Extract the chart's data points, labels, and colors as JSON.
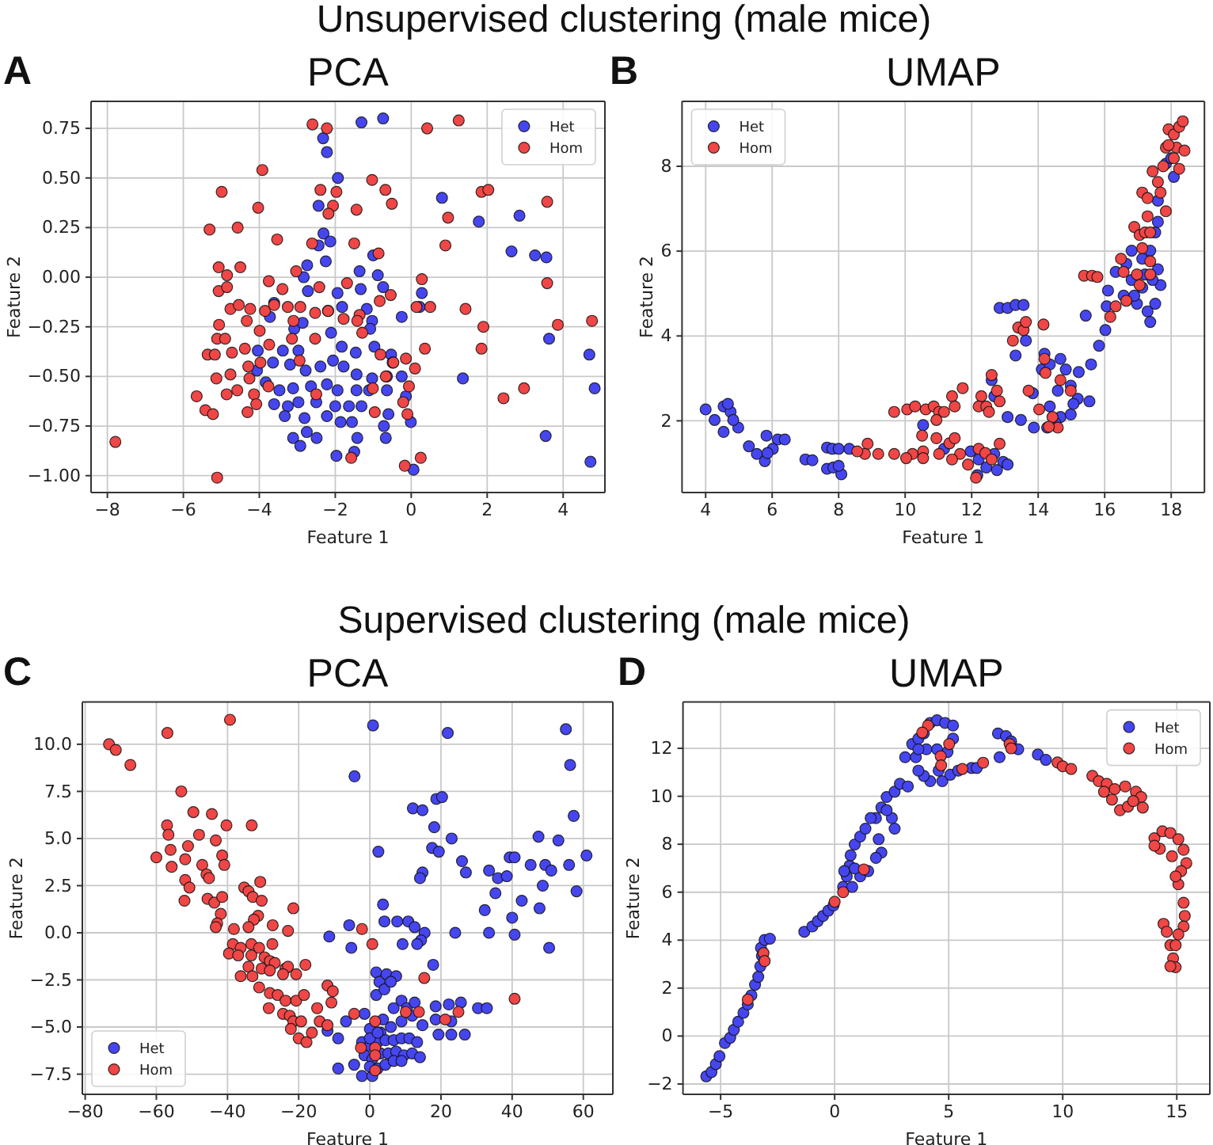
{
  "chart_data": [
    {
      "type": "scatter",
      "title": "PCA",
      "xlabel": "Feature 1",
      "ylabel": "Feature 2",
      "annotations": [
        "A",
        "Unsupervised clustering (male mice)"
      ],
      "xlim": [
        -8.43,
        5.1
      ],
      "ylim": [
        -1.085,
        0.886
      ],
      "xticks": [
        {
          "value": -8,
          "label": "−8"
        },
        {
          "value": -6,
          "label": "−6"
        },
        {
          "value": -4,
          "label": "−4"
        },
        {
          "value": -2,
          "label": "−2"
        },
        0,
        2,
        4
      ],
      "yticks": [
        {
          "value": -1,
          "label": "−1.00"
        },
        {
          "value": -0.75,
          "label": "−0.75"
        },
        {
          "value": -0.5,
          "label": "−0.50"
        },
        {
          "value": -0.25,
          "label": "−0.25"
        },
        {
          "value": 0,
          "label": "0.00"
        },
        {
          "value": 0.25,
          "label": "0.25"
        },
        {
          "value": 0.5,
          "label": "0.50"
        },
        {
          "value": 0.75,
          "label": "0.75"
        }
      ],
      "grid": true,
      "legend": "top right",
      "marker": "circle",
      "series": [
        {
          "name": "Het",
          "color": "#4646f0",
          "x": [
            -1.31,
            -0.74,
            -2.32,
            -2.22,
            -1.93,
            -2.44,
            -2.31,
            -2.13,
            -2.44,
            -2.25,
            -2.74,
            0.81,
            1.78,
            2.85,
            2.64,
            3.26,
            3.56,
            -1.36,
            -1.0,
            -0.88,
            -2.83,
            -2.72,
            -1.94,
            -1.33,
            -0.74,
            0.28,
            0.22,
            -0.25,
            -2.19,
            -1.82,
            -1.17,
            -1.03,
            -3.72,
            -3.61,
            -3.08,
            -2.86,
            -2.11,
            -1.08,
            3.63,
            -4.04,
            -3.38,
            -2.97,
            -1.83,
            -1.46,
            -0.97,
            -0.53,
            -0.49,
            -4.06,
            -3.64,
            -3.19,
            -2.78,
            -2.39,
            -2.06,
            -1.78,
            -1.44,
            -1.03,
            -0.64,
            -0.25,
            1.36,
            4.69,
            4.83,
            -3.83,
            -3.47,
            -3.11,
            -2.64,
            -2.22,
            -1.94,
            -1.44,
            -1.11,
            -0.64,
            -3.61,
            -3.25,
            -2.97,
            -2.5,
            -2.0,
            -1.64,
            -1.31,
            -0.14,
            -0.6,
            -3.33,
            -2.81,
            -2.22,
            -1.86,
            -1.56,
            -0.72,
            -0.01,
            -3.11,
            -2.75,
            -2.49,
            -2.92,
            -1.42,
            -0.67,
            3.54,
            -1.97,
            -1.5,
            0.06,
            4.72
          ],
          "values": [
            0.78,
            0.8,
            0.7,
            0.63,
            0.5,
            0.36,
            0.22,
            0.18,
            0.16,
            0.08,
            0.06,
            0.4,
            0.28,
            0.31,
            0.13,
            0.11,
            0.1,
            0.03,
            0.11,
            0.01,
            0.0,
            -0.07,
            -0.08,
            -0.06,
            -0.05,
            -0.08,
            -0.15,
            -0.2,
            -0.17,
            -0.15,
            -0.16,
            -0.22,
            -0.2,
            -0.13,
            -0.26,
            -0.23,
            -0.28,
            -0.26,
            -0.31,
            -0.37,
            -0.37,
            -0.37,
            -0.35,
            -0.38,
            -0.35,
            -0.39,
            -0.43,
            -0.47,
            -0.43,
            -0.44,
            -0.47,
            -0.45,
            -0.42,
            -0.45,
            -0.49,
            -0.51,
            -0.5,
            -0.5,
            -0.51,
            -0.39,
            -0.56,
            -0.53,
            -0.57,
            -0.56,
            -0.55,
            -0.54,
            -0.57,
            -0.57,
            -0.57,
            -0.57,
            -0.64,
            -0.65,
            -0.63,
            -0.63,
            -0.65,
            -0.65,
            -0.65,
            -0.6,
            -0.69,
            -0.7,
            -0.71,
            -0.7,
            -0.73,
            -0.73,
            -0.75,
            -0.73,
            -0.81,
            -0.78,
            -0.81,
            -0.85,
            -0.81,
            -0.81,
            -0.8,
            -0.9,
            -0.88,
            -0.97,
            -0.93
          ]
        },
        {
          "name": "Hom",
          "color": "#f04646",
          "x": [
            -7.79,
            -2.6,
            -2.22,
            0.42,
            1.25,
            -3.92,
            -4.99,
            -4.03,
            -2.39,
            -1.97,
            -2.06,
            -2.18,
            -1.44,
            -1.03,
            -0.68,
            -0.51,
            1.85,
            2.03,
            0.97,
            3.58,
            -5.31,
            -4.57,
            -3.53,
            -2.61,
            -1.5,
            -0.86,
            0.9,
            -5.07,
            -4.85,
            -4.5,
            -3.03,
            -5.07,
            -4.85,
            -3.75,
            -3.39,
            -2.42,
            -1.69,
            -0.54,
            0.28,
            3.58,
            -4.76,
            -4.54,
            -4.24,
            -3.85,
            -3.61,
            -3.25,
            -2.92,
            -2.53,
            -2.19,
            -1.36,
            -0.83,
            0.14,
            0.5,
            1.43,
            -5.06,
            -4.33,
            -3.99,
            -3.1,
            -1.78,
            -1.42,
            -1.29,
            1.9,
            3.86,
            4.76,
            -5.11,
            -4.9,
            -5.36,
            -5.17,
            -4.72,
            -4.38,
            -3.74,
            -3.14,
            -2.53,
            -0.81,
            -0.14,
            0.36,
            1.85,
            -4.29,
            -3.97,
            -5.13,
            -4.76,
            -2.94,
            -0.47,
            0.1,
            -4.26,
            -0.67,
            -5.65,
            -5.42,
            -5.22,
            -4.86,
            -4.58,
            -4.14,
            -4.08,
            -3.76,
            -4.31,
            -5.11,
            -2.5,
            -1.01,
            -0.96,
            -0.21,
            -0.1,
            -0.06,
            0.25,
            -0.17,
            -1.58,
            2.43,
            2.97
          ],
          "values": [
            -0.83,
            0.77,
            0.75,
            0.75,
            0.79,
            0.54,
            0.43,
            0.35,
            0.44,
            0.43,
            0.36,
            0.32,
            0.34,
            0.49,
            0.44,
            0.37,
            0.43,
            0.44,
            0.3,
            0.38,
            0.24,
            0.25,
            0.19,
            0.17,
            0.17,
            0.12,
            0.16,
            0.05,
            0.01,
            0.05,
            0.03,
            -0.07,
            -0.05,
            -0.02,
            -0.06,
            -0.05,
            -0.03,
            -0.09,
            -0.01,
            -0.03,
            -0.16,
            -0.14,
            -0.16,
            -0.17,
            -0.14,
            -0.15,
            -0.15,
            -0.18,
            -0.17,
            -0.19,
            -0.12,
            -0.15,
            -0.15,
            -0.16,
            -0.24,
            -0.22,
            -0.27,
            -0.22,
            -0.21,
            -0.22,
            -0.28,
            -0.25,
            -0.24,
            -0.22,
            -0.31,
            -0.31,
            -0.39,
            -0.39,
            -0.38,
            -0.36,
            -0.34,
            -0.31,
            -0.31,
            -0.39,
            -0.41,
            -0.36,
            -0.36,
            -0.45,
            -0.43,
            -0.51,
            -0.49,
            -0.42,
            -0.43,
            -0.46,
            -0.51,
            -0.5,
            -0.6,
            -0.67,
            -0.69,
            -0.59,
            -0.57,
            -0.59,
            -0.64,
            -0.55,
            -0.68,
            -1.01,
            -0.59,
            -0.56,
            -0.68,
            -0.63,
            -0.69,
            -0.55,
            -0.91,
            -0.95,
            -0.91,
            -0.61,
            -0.56
          ]
        }
      ]
    },
    {
      "type": "scatter",
      "title": "UMAP",
      "xlabel": "Feature 1",
      "ylabel": "Feature 2",
      "annotations": [
        "B"
      ],
      "xlim": [
        3.29,
        19.0
      ],
      "ylim": [
        0.31,
        9.53
      ],
      "xticks": [
        4,
        6,
        8,
        10,
        12,
        14,
        16,
        18
      ],
      "yticks": [
        2,
        4,
        6,
        8
      ],
      "grid": true,
      "legend": "top left",
      "marker": "circle",
      "series": [
        {
          "name": "Het",
          "color": "#4646f0",
          "x": [
            4.0,
            4.27,
            4.54,
            4.75,
            4.54,
            4.98,
            4.83,
            4.67,
            5.3,
            5.54,
            5.78,
            5.83,
            6.17,
            6.38,
            6.02,
            5.86,
            7.0,
            7.21,
            7.65,
            7.81,
            8.0,
            8.32,
            7.65,
            7.84,
            8.08,
            8.0,
            11.97,
            12.21,
            12.44,
            12.68,
            12.95,
            13.08,
            12.76,
            12.17,
            10.54,
            11.17,
            12.84,
            13.08,
            13.32,
            13.56,
            13.63,
            13.32,
            12.6,
            12.68,
            13.08,
            13.48,
            13.84,
            14.11,
            14.19,
            14.35,
            14.67,
            14.83,
            14.98,
            14.59,
            14.35,
            14.67,
            14.98,
            14.51,
            13.87,
            14.27,
            15.19,
            15.54,
            15.06,
            15.22,
            15.59,
            15.43,
            15.83,
            16.02,
            16.06,
            16.1,
            16.33,
            16.57,
            16.81,
            16.97,
            17.13,
            17.29,
            17.37,
            17.52,
            17.68,
            17.6,
            17.37,
            17.52,
            17.13,
            16.81,
            16.65,
            16.89,
            17.21,
            17.44,
            17.6,
            17.84,
            18.08,
            17.6,
            18.0
          ],
          "values": [
            2.27,
            2.02,
            2.34,
            2.21,
            1.74,
            1.84,
            2.02,
            2.4,
            1.4,
            1.22,
            1.05,
            1.65,
            1.56,
            1.56,
            1.34,
            1.24,
            1.09,
            1.07,
            1.37,
            1.34,
            1.34,
            1.34,
            0.87,
            0.9,
            0.74,
            0.94,
            1.28,
            1.09,
            0.9,
            1.22,
            1.03,
            0.97,
            0.84,
            0.72,
            1.9,
            1.34,
            4.66,
            4.66,
            4.73,
            4.73,
            3.89,
            3.54,
            2.96,
            2.58,
            2.09,
            2.02,
            2.65,
            3.21,
            3.58,
            3.33,
            3.46,
            3.21,
            2.83,
            2.71,
            2.34,
            2.09,
            2.15,
            1.96,
            1.84,
            1.84,
            2.52,
            2.46,
            2.4,
            3.15,
            3.33,
            4.48,
            3.77,
            4.14,
            4.7,
            5.07,
            5.51,
            4.95,
            5.32,
            4.76,
            5.14,
            4.58,
            4.33,
            4.76,
            5.2,
            5.57,
            6.01,
            6.44,
            5.82,
            6.01,
            5.7,
            4.95,
            5.45,
            5.32,
            6.69,
            8.06,
            7.75,
            7.19,
            8.19
          ]
        },
        {
          "name": "Hom",
          "color": "#f04646",
          "x": [
            9.67,
            10.06,
            10.3,
            10.62,
            10.86,
            11.02,
            11.41,
            11.73,
            11.49,
            10.94,
            11.17,
            10.51,
            10.94,
            10.54,
            11.02,
            11.33,
            11.49,
            11.65,
            11.41,
            11.89,
            8.87,
            8.79,
            8.56,
            9.19,
            9.67,
            10.22,
            10.03,
            10.54,
            12.13,
            12.21,
            12.41,
            12.6,
            12.84,
            12.29,
            12.21,
            12.44,
            12.6,
            12.76,
            12.84,
            12.52,
            13.4,
            13.56,
            13.63,
            14.16,
            13.24,
            14.19,
            14.22,
            14.67,
            14.98,
            14.59,
            14.43,
            14.03,
            14.32,
            13.71,
            15.38,
            15.62,
            15.78,
            16.17,
            16.33,
            16.65,
            16.49,
            16.57,
            16.97,
            17.05,
            17.37,
            17.37,
            17.13,
            16.89,
            17.05,
            17.21,
            17.29,
            17.13,
            17.29,
            17.44,
            17.6,
            17.76,
            17.84,
            17.92,
            18.08,
            18.24,
            18.35,
            18.16,
            18.4,
            17.92,
            18.08,
            18.24,
            17.68,
            17.84,
            17.37
          ],
          "values": [
            2.21,
            2.27,
            2.34,
            2.27,
            2.34,
            2.21,
            2.58,
            2.77,
            2.34,
            2.02,
            2.21,
            1.65,
            1.59,
            1.28,
            1.22,
            1.47,
            1.59,
            1.22,
            1.09,
            0.97,
            1.46,
            1.22,
            1.28,
            1.22,
            1.22,
            1.22,
            1.12,
            1.12,
            0.66,
            1.34,
            1.24,
            1.09,
            1.46,
            2.58,
            2.34,
            2.34,
            3.08,
            2.71,
            2.46,
            2.21,
            4.2,
            4.14,
            4.33,
            4.27,
            3.89,
            3.46,
            3.13,
            2.96,
            2.71,
            1.84,
            2.09,
            2.27,
            1.86,
            2.71,
            5.42,
            5.42,
            5.39,
            4.45,
            4.7,
            4.83,
            5.82,
            5.51,
            5.45,
            5.2,
            5.45,
            5.76,
            6.07,
            6.57,
            6.38,
            6.44,
            6.82,
            7.38,
            7.25,
            7.88,
            7.63,
            8.0,
            8.44,
            8.87,
            8.75,
            8.93,
            9.06,
            8.44,
            8.37,
            8.5,
            8.19,
            7.94,
            7.38,
            6.94,
            6.44
          ]
        }
      ]
    },
    {
      "type": "scatter",
      "title": "PCA",
      "xlabel": "Feature 1",
      "ylabel": "Feature 2",
      "annotations": [
        "C",
        "Supervised clustering (male mice)"
      ],
      "xlim": [
        -80.8,
        68.3
      ],
      "ylim": [
        -8.57,
        12.24
      ],
      "xticks": [
        {
          "value": -80,
          "label": "−80"
        },
        {
          "value": -60,
          "label": "−60"
        },
        {
          "value": -40,
          "label": "−40"
        },
        {
          "value": -20,
          "label": "−20"
        },
        0,
        20,
        40,
        60
      ],
      "yticks": [
        {
          "value": -7.5,
          "label": "−7.5"
        },
        {
          "value": -5,
          "label": "−5.0"
        },
        {
          "value": -2.5,
          "label": "−2.5"
        },
        {
          "value": 0,
          "label": "0.0"
        },
        2.5,
        {
          "value": 5,
          "label": "5.0"
        },
        7.5,
        {
          "value": 10,
          "label": "10.0"
        }
      ],
      "grid": true,
      "legend": "bottom left",
      "marker": "circle",
      "series": [
        {
          "name": "Het",
          "color": "#4646f0",
          "x": [
            0.9,
            21.9,
            55.1,
            56.3,
            -4.3,
            57.3,
            12.1,
            14.8,
            18.7,
            20.3,
            18.1,
            23.0,
            17.5,
            19.4,
            2.4,
            25.9,
            27.0,
            14.8,
            14.1,
            47.4,
            53.0,
            60.9,
            56.0,
            49.3,
            45.2,
            39.3,
            40.7,
            33.5,
            35.3,
            36.0,
            38.5,
            48.6,
            51.0,
            58.1,
            42.7,
            32.3,
            40.0,
            47.7,
            50.4,
            33.5,
            40.7,
            24.0,
            3.7,
            4.1,
            7.7,
            10.8,
            12.6,
            15.4,
            14.4,
            13.3,
            9.2,
            -5.8,
            -5.2,
            -11.4,
            17.8,
            1.8,
            2.7,
            4.7,
            7.4,
            1.8,
            4.1,
            5.9,
            18.5,
            22.2,
            25.6,
            30.4,
            32.9,
            18.5,
            22.9,
            19.3,
            22.9,
            26.7,
            -8.9,
            -11.9,
            -6.7,
            -8.9,
            -4.4,
            -2.2,
            0.7,
            -1.5,
            0,
            3.0,
            5.9,
            8.9,
            11.9,
            14.8,
            -2.2,
            0,
            2.2,
            4.4,
            6.7,
            8.9,
            11.1,
            13.3,
            -1.5,
            0.7,
            3.0,
            5.2,
            7.4,
            9.6,
            11.9,
            14.1,
            0,
            2.2,
            4.4,
            6.7,
            8.9,
            3.7,
            6.7,
            8.9,
            10.4,
            12.6,
            0,
            2.2
          ],
          "values": [
            11.0,
            10.6,
            10.8,
            8.9,
            8.3,
            6.2,
            6.6,
            6.5,
            7.1,
            7.2,
            5.6,
            5.0,
            4.5,
            4.3,
            4.3,
            3.8,
            3.2,
            3.2,
            2.9,
            5.1,
            4.9,
            4.1,
            3.6,
            3.6,
            3.6,
            4.0,
            4.0,
            3.3,
            2.1,
            2.9,
            3.0,
            2.5,
            3.3,
            2.2,
            1.7,
            1.2,
            0.8,
            1.3,
            -0.8,
            0.0,
            -0.1,
            0.0,
            1.5,
            0.6,
            0.6,
            0.6,
            0.3,
            0.0,
            -0.4,
            -0.6,
            -0.6,
            0.4,
            -0.8,
            -0.2,
            -1.7,
            -2.1,
            -2.6,
            -2.2,
            -2.3,
            -3.3,
            -3.0,
            -2.6,
            -3.9,
            -3.8,
            -3.7,
            -4.0,
            -4.0,
            -4.6,
            -4.7,
            -5.4,
            -5.4,
            -5.4,
            -5.6,
            -5.2,
            -4.7,
            -7.2,
            -7.0,
            -7.6,
            -7.6,
            -4.3,
            -5.1,
            -5.3,
            -5.0,
            -4.7,
            -4.4,
            -4.9,
            -5.8,
            -6.0,
            -5.8,
            -5.7,
            -5.7,
            -5.6,
            -5.6,
            -5.8,
            -6.5,
            -6.7,
            -6.4,
            -6.4,
            -6.3,
            -6.5,
            -6.4,
            -6.6,
            -7.1,
            -7.2,
            -7.0,
            -6.8,
            -6.8,
            -4.6,
            -4.0,
            -3.6,
            -4.0,
            -3.7,
            -5.6,
            -5.3
          ]
        },
        {
          "name": "Hom",
          "color": "#f04646",
          "x": [
            -73.3,
            -71.4,
            -67.3,
            -56.9,
            -39.3,
            -53.0,
            -57.0,
            -56.6,
            -49.6,
            -44.4,
            -40.3,
            -33.2,
            -48.0,
            -43.3,
            -56.0,
            -51.1,
            -60.0,
            -51.9,
            -47.1,
            -55.7,
            -45.9,
            -41.5,
            -40.9,
            -45.2,
            -51.9,
            -50.7,
            -52.1,
            -45.6,
            -43.7,
            -41.5,
            -41.9,
            -42.9,
            -43.3,
            -38.2,
            -35.3,
            -34.1,
            -32.9,
            -30.8,
            -30.4,
            -31.4,
            -32.6,
            -27.3,
            -38.5,
            -36.3,
            -34.1,
            -33.3,
            -39.6,
            -37.0,
            -33.3,
            -31.1,
            -29.6,
            -27.4,
            -23.0,
            -34.1,
            -30.4,
            -28.1,
            -26.7,
            -36.3,
            -33.0,
            -28.1,
            -23.7,
            -21.5,
            -23.0,
            -24.4,
            -20.7,
            -18.1,
            -31.1,
            -28.1,
            -25.9,
            -23.7,
            -20.7,
            -18.5,
            -28.4,
            -24.4,
            -22.5,
            -21.5,
            -19.3,
            -22.2,
            -20.0,
            -17.8,
            -16.3,
            -14.8,
            -11.9,
            -10.4,
            -10.8,
            -14.1,
            -11.9,
            -4.4,
            -2.5,
            -2.2,
            0.7,
            1.5,
            1.5,
            1.5,
            1.5,
            15.3,
            10.1,
            13.8,
            21.2,
            24.9,
            40.7
          ],
          "values": [
            10.0,
            9.7,
            8.9,
            10.6,
            11.3,
            7.5,
            5.7,
            5.2,
            6.4,
            6.3,
            5.7,
            5.7,
            5.2,
            4.9,
            4.4,
            4.6,
            4.0,
            3.9,
            3.6,
            3.5,
            3.1,
            4.1,
            3.6,
            2.9,
            2.8,
            2.4,
            1.7,
            1.8,
            1.6,
            1.9,
            1.0,
            0.5,
            0.3,
            0.2,
            2.4,
            2.2,
            1.9,
            2.7,
            1.7,
            0.9,
            0.7,
            0.4,
            -0.6,
            -0.8,
            0.3,
            -0.6,
            -1.1,
            -1.2,
            -1.2,
            -0.8,
            -1.3,
            -0.6,
            0.1,
            -1.8,
            -1.9,
            -1.5,
            -1.6,
            -2.3,
            -2.3,
            -2.0,
            -1.9,
            1.3,
            -1.8,
            -2.2,
            -2.2,
            -1.7,
            -2.9,
            -3.2,
            -3.3,
            -3.6,
            -3.6,
            -3.3,
            -4.0,
            -4.3,
            -4.4,
            -4.7,
            -4.7,
            -5.1,
            -5.6,
            -5.8,
            -5.3,
            -4.0,
            -2.8,
            -3.1,
            -3.7,
            -4.7,
            -4.9,
            -4.3,
            -6.1,
            0.2,
            -0.6,
            -4.7,
            -6.1,
            -6.5,
            -7.3,
            -2.4,
            -4.2,
            -4.2,
            -4.6,
            -4.2,
            -3.5
          ]
        }
      ]
    },
    {
      "type": "scatter",
      "title": "UMAP",
      "xlabel": "Feature 1",
      "ylabel": "Feature 2",
      "annotations": [
        "D"
      ],
      "xlim": [
        -6.65,
        16.45
      ],
      "ylim": [
        -2.43,
        13.93
      ],
      "xticks": [
        {
          "value": -5,
          "label": "−5"
        },
        0,
        5,
        10,
        15
      ],
      "yticks": [
        {
          "value": -2,
          "label": "−2"
        },
        0,
        2,
        4,
        6,
        8,
        10,
        12
      ],
      "grid": true,
      "legend": "top right",
      "marker": "circle",
      "series": [
        {
          "name": "Het",
          "color": "#4646f0",
          "x": [
            -5.63,
            -5.4,
            -5.21,
            -5.05,
            -4.81,
            -4.58,
            -4.42,
            -4.23,
            -4.0,
            -3.81,
            -3.65,
            -3.49,
            -3.35,
            -3.26,
            -3.19,
            -3.23,
            -3.07,
            -2.84,
            -1.33,
            -0.98,
            -0.74,
            -0.51,
            -0.28,
            -0.05,
            0.37,
            0.53,
            0.65,
            0.7,
            0.88,
            1.12,
            1.35,
            0.77,
            1.12,
            0.42,
            0.88,
            1.47,
            1.81,
            2.05,
            2.28,
            2.63,
            2.86,
            3.21,
            2.51,
            2.63,
            1.93,
            2.05,
            1.81,
            1.58,
            2.28,
            3.09,
            3.4,
            3.67,
            3.91,
            4.19,
            4.49,
            4.84,
            5.19,
            5.19,
            4.95,
            4.56,
            4.19,
            3.91,
            3.67,
            3.56,
            4.72,
            5.07,
            5.42,
            4.49,
            4.02,
            3.67,
            6.0,
            6.23,
            7.16,
            7.51,
            7.74,
            8.05,
            7.23,
            8.91,
            9.26
          ],
          "values": [
            -1.68,
            -1.5,
            -1.17,
            -0.84,
            -0.29,
            -0.07,
            0.26,
            0.6,
            0.97,
            1.32,
            1.7,
            2.14,
            2.47,
            2.91,
            3.35,
            3.68,
            4.01,
            4.06,
            4.35,
            4.57,
            4.79,
            5.01,
            5.23,
            5.45,
            6.22,
            6.66,
            7.1,
            7.54,
            7.99,
            8.32,
            8.65,
            6.22,
            6.66,
            6.88,
            6.99,
            6.88,
            9.09,
            9.53,
            9.97,
            10.19,
            10.52,
            10.41,
            9.09,
            8.65,
            8.21,
            7.65,
            7.43,
            9.09,
            9.42,
            11.63,
            12.18,
            12.4,
            12.62,
            13.06,
            13.17,
            13.06,
            12.95,
            12.4,
            11.85,
            11.07,
            10.63,
            10.85,
            11.07,
            11.63,
            10.63,
            10.9,
            11.07,
            11.96,
            11.96,
            11.96,
            11.18,
            11.18,
            12.62,
            12.51,
            12.29,
            11.96,
            11.63,
            11.74,
            11.52
          ]
        },
        {
          "name": "Hom",
          "color": "#f04646",
          "x": [
            -3.81,
            -3.12,
            -3.07,
            0.0,
            0.37,
            1.28,
            4.09,
            3.84,
            4.65,
            4.67,
            5.02,
            5.6,
            6.51,
            7.67,
            7.74,
            9.77,
            10.0,
            10.37,
            11.3,
            11.58,
            11.93,
            12.28,
            12.74,
            13.21,
            13.44,
            12.16,
            12.51,
            12.86,
            13.09,
            13.51,
            11.81,
            14.02,
            14.37,
            14.72,
            15.07,
            15.3,
            15.42,
            15.19,
            15.07,
            14.95,
            14.79,
            14.26,
            14.02,
            15.3,
            15.35,
            15.3,
            14.42,
            14.56,
            14.72,
            14.84,
            14.95,
            14.72,
            14.95,
            15.07
          ],
          "values": [
            1.52,
            3.46,
            3.13,
            5.6,
            6.0,
            6.95,
            12.95,
            12.66,
            11.67,
            11.29,
            12.18,
            11.14,
            11.4,
            12.18,
            12.0,
            11.41,
            11.25,
            11.14,
            10.85,
            10.63,
            10.52,
            10.3,
            10.41,
            10.19,
            9.97,
            9.86,
            9.42,
            9.57,
            9.8,
            9.53,
            10.19,
            8.25,
            8.54,
            8.47,
            8.21,
            7.77,
            7.21,
            6.88,
            6.33,
            6.66,
            7.5,
            7.81,
            7.94,
            5.56,
            5.01,
            4.57,
            4.68,
            4.35,
            3.79,
            3.24,
            2.87,
            2.91,
            3.79,
            4.24
          ]
        }
      ]
    }
  ]
}
